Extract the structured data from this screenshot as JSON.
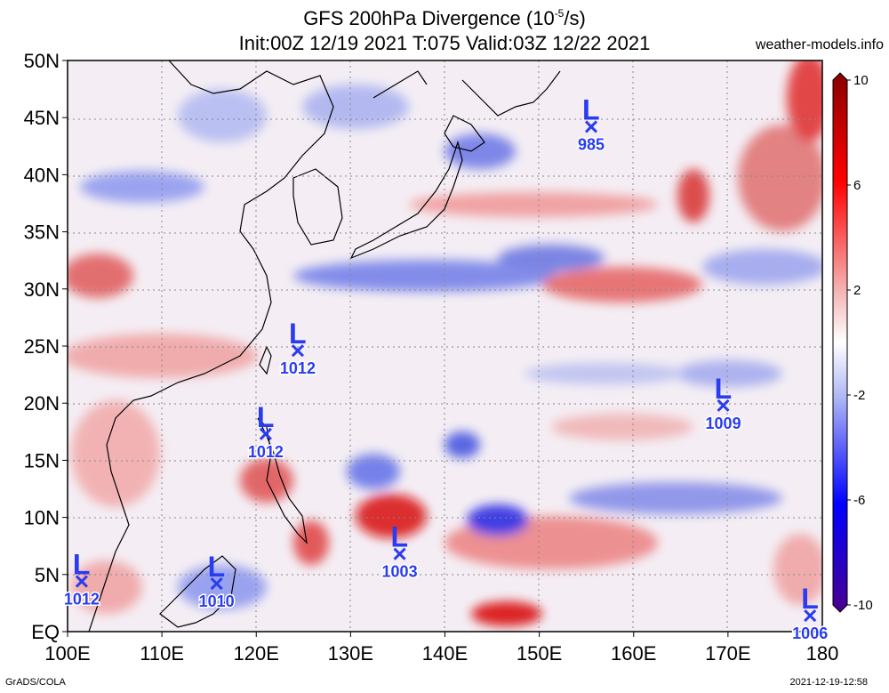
{
  "title": {
    "line1_prefix": "GFS 200hPa Divergence (10",
    "line1_exp": "-5",
    "line1_suffix": "/s)",
    "line2": "Init:00Z 12/19 2021 T:075 Valid:03Z 12/22 2021"
  },
  "site": "weather-models.info",
  "footer": {
    "left": "GrADS/COLA",
    "right": "2021-12-19-12:58"
  },
  "map": {
    "lon_range": [
      100,
      180
    ],
    "lat_range": [
      0,
      50
    ],
    "lon_ticks": [
      "100E",
      "110E",
      "120E",
      "130E",
      "140E",
      "150E",
      "160E",
      "170E",
      "180"
    ],
    "lat_ticks": [
      "EQ",
      "5N",
      "10N",
      "15N",
      "20N",
      "25N",
      "30N",
      "35N",
      "40N",
      "45N",
      "50N"
    ],
    "grid": true,
    "colorbar": {
      "range": [
        -10,
        10
      ],
      "ticks": [
        "10",
        "6",
        "2",
        "-2",
        "-6",
        "-10"
      ],
      "colors": [
        "#ffe0e0",
        "#e0474a",
        "#ff0000",
        "#a00000",
        "#0000ff",
        "#5a00a0"
      ]
    }
  },
  "lows": [
    {
      "label": "L",
      "value": "985",
      "lon": 155.5,
      "lat": 44.2
    },
    {
      "label": "L",
      "value": "1012",
      "lon": 124.4,
      "lat": 24.6
    },
    {
      "label": "L",
      "value": "1012",
      "lon": 121.0,
      "lat": 17.3
    },
    {
      "label": "L",
      "value": "1009",
      "lon": 169.5,
      "lat": 19.8
    },
    {
      "label": "L",
      "value": "1003",
      "lon": 135.2,
      "lat": 6.8
    },
    {
      "label": "L",
      "value": "1012",
      "lon": 101.5,
      "lat": 4.4
    },
    {
      "label": "L",
      "value": "1010",
      "lon": 115.8,
      "lat": 4.2
    },
    {
      "label": "L",
      "value": "1006",
      "lon": 178.7,
      "lat": 1.4
    }
  ]
}
